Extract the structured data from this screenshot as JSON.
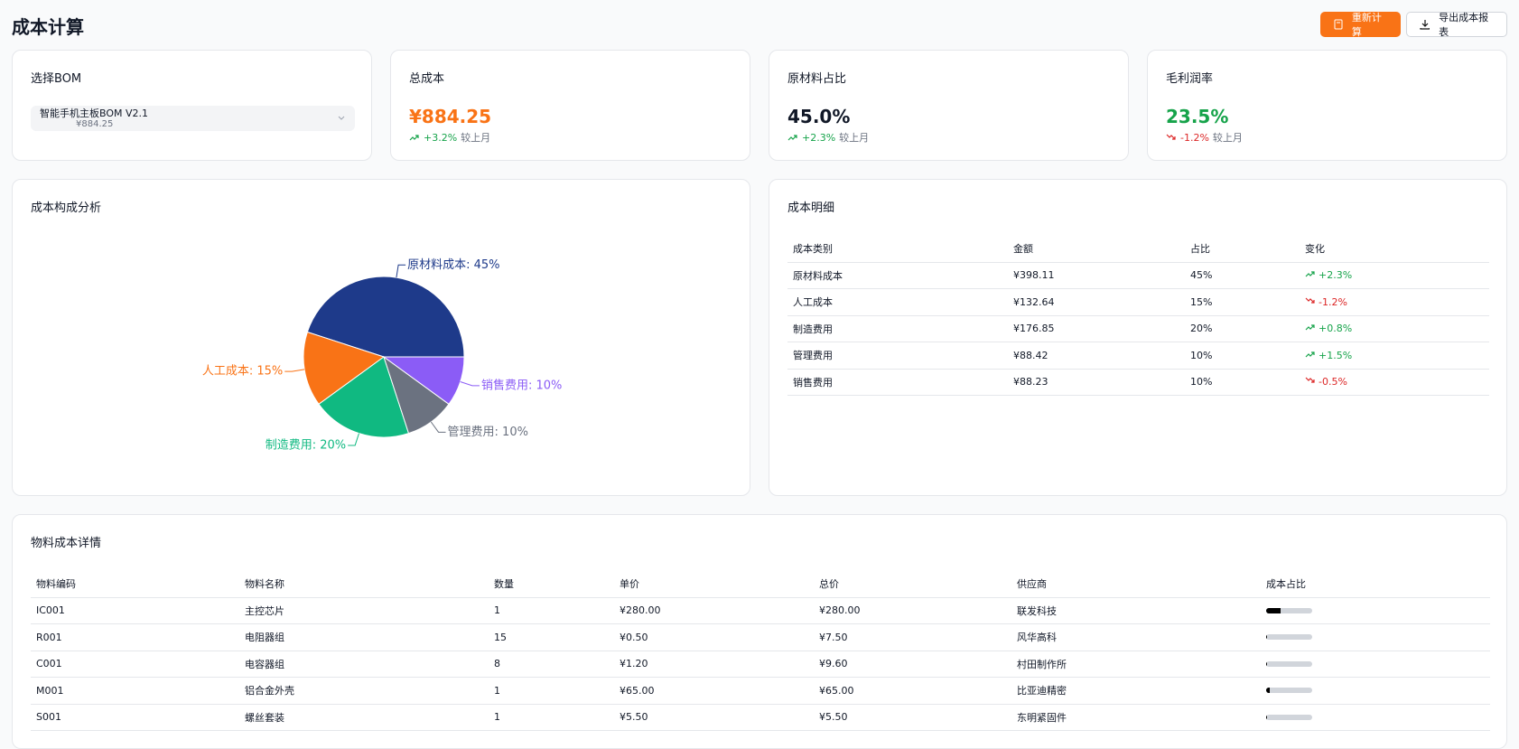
{
  "header": {
    "title": "成本计算",
    "buttons": [
      "重新计算",
      "导出成本报表"
    ]
  },
  "bom_card": {
    "title": "选择BOM",
    "selected": "智能手机主板BOM V2.1",
    "selected_cost": "¥884.25"
  },
  "stat_cards": [
    {
      "title": "总成本",
      "value": "¥884.25",
      "color": "#f97316",
      "change": "+3.2%",
      "compare": "较上月"
    },
    {
      "title": "原材料占比",
      "value": "45.0%",
      "color": "#111827",
      "change": "+2.3%",
      "compare": "较上月"
    },
    {
      "title": "毛利润率",
      "value": "23.5%",
      "color": "#16a34a",
      "change": "-1.2%",
      "compare": "较上月"
    }
  ],
  "chart_data": {
    "type": "pie",
    "title": "成本构成分析",
    "labels": [
      "原材料成本: 45%",
      "人工成本: 15%",
      "制造费用: 20%",
      "管理费用: 10%",
      "销售费用: 10%"
    ],
    "values": [
      45,
      15,
      20,
      10,
      10
    ],
    "colors": [
      "#1e3a8a",
      "#f97316",
      "#10b981",
      "#6b7280",
      "#8b5cf6"
    ]
  },
  "cost_table": {
    "title": "成本明细",
    "columns": [
      "成本类别",
      "金额",
      "占比",
      "变化"
    ],
    "rows": [
      [
        "原材料成本",
        "¥398.11",
        "45%",
        "+2.3%"
      ],
      [
        "人工成本",
        "¥132.64",
        "15%",
        "-1.2%"
      ],
      [
        "制造费用",
        "¥176.85",
        "20%",
        "+0.8%"
      ],
      [
        "管理费用",
        "¥88.42",
        "10%",
        "+1.5%"
      ],
      [
        "销售费用",
        "¥88.23",
        "10%",
        "-0.5%"
      ]
    ]
  },
  "material_table": {
    "title": "物料成本详情",
    "columns": [
      "物料编码",
      "物料名称",
      "数量",
      "单价",
      "总价",
      "供应商",
      "成本占比"
    ],
    "rows": [
      [
        "IC001",
        "主控芯片",
        "1",
        "¥280.00",
        "¥280.00",
        "联发科技"
      ],
      [
        "R001",
        "电阻器组",
        "15",
        "¥0.50",
        "¥7.50",
        "风华高科"
      ],
      [
        "C001",
        "电容器组",
        "8",
        "¥1.20",
        "¥9.60",
        "村田制作所"
      ],
      [
        "M001",
        "铝合金外壳",
        "1",
        "¥65.00",
        "¥65.00",
        "比亚迪精密"
      ],
      [
        "S001",
        "螺丝套装",
        "1",
        "¥5.50",
        "¥5.50",
        "东明紧固件"
      ]
    ],
    "share": [
      31.7,
      0.8,
      1.1,
      7.4,
      0.6
    ]
  }
}
